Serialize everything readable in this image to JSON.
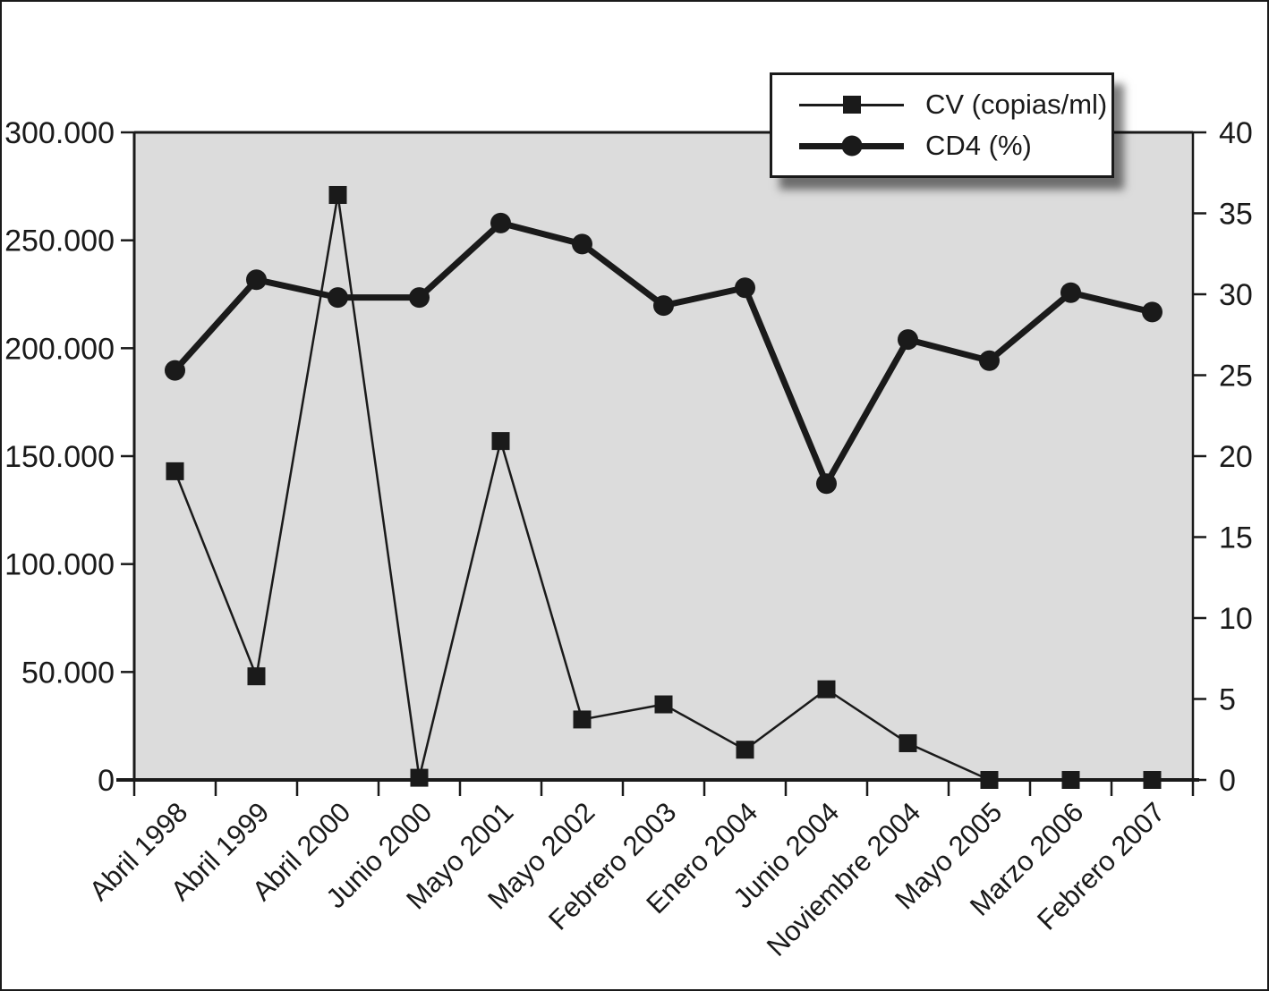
{
  "chart_data": {
    "type": "line",
    "title": "",
    "categories": [
      "Abril 1998",
      "Abril 1999",
      "Abril 2000",
      "Junio 2000",
      "Mayo 2001",
      "Mayo 2002",
      "Febrero 2003",
      "Enero 2004",
      "Junio 2004",
      "Noviembre 2004",
      "Mayo 2005",
      "Marzo 2006",
      "Febrero 2007"
    ],
    "series": [
      {
        "name": "CV (copias/ml)",
        "axis": "left",
        "marker": "square",
        "line": "thin",
        "values": [
          143000,
          48000,
          271000,
          1000,
          157000,
          28000,
          35000,
          14000,
          42000,
          17000,
          0,
          0,
          0
        ]
      },
      {
        "name": "CD4 (%)",
        "axis": "right",
        "marker": "circle",
        "line": "thick",
        "values": [
          25.3,
          30.9,
          29.8,
          29.8,
          34.4,
          33.1,
          29.3,
          30.4,
          18.3,
          27.2,
          25.9,
          30.1,
          28.9
        ]
      }
    ],
    "left_axis": {
      "min": 0,
      "max": 300000,
      "step": 50000,
      "tick_labels": [
        "300.000",
        "250.000",
        "200.000",
        "150.000",
        "100.000",
        "50.000",
        "0"
      ]
    },
    "right_axis": {
      "min": 0,
      "max": 40,
      "step": 5,
      "tick_labels": [
        "40",
        "35",
        "30",
        "25",
        "20",
        "15",
        "10",
        "5",
        "0"
      ]
    },
    "legend_position": "top-right",
    "grid": false,
    "plot_background": "#dcdcdc",
    "ink_color": "#1a1a1a",
    "page_background": "#ffffff"
  }
}
